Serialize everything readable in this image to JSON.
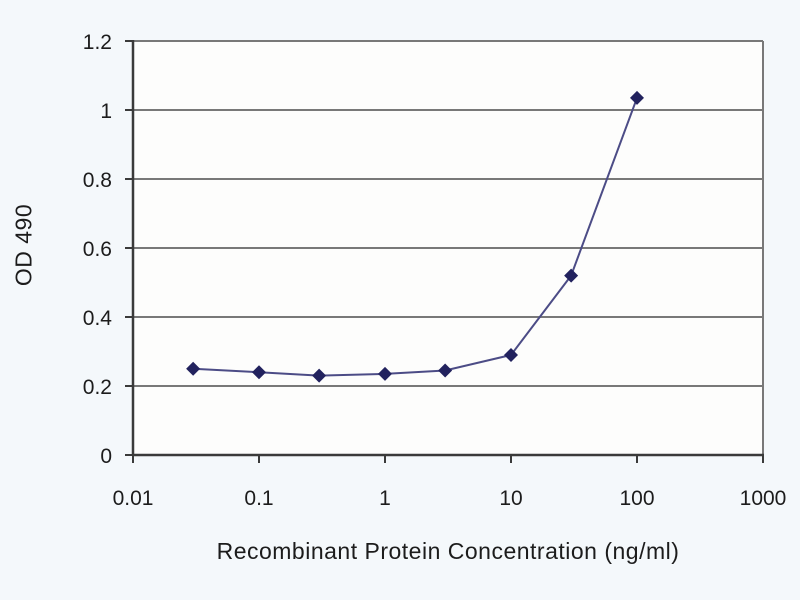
{
  "style": {
    "page_bg": "#f4f8fb",
    "plot_bg": "#fdfdfc",
    "grid_color": "#787878",
    "frame_color": "#787878",
    "axis_color": "#3a3a3a",
    "line_color": "#4c4c86",
    "marker_color": "#22225e",
    "text_color": "#1c1c1c"
  },
  "chart_data": {
    "type": "line",
    "title": "",
    "xlabel": "Recombinant Protein Concentration (ng/ml)",
    "ylabel": "OD 490",
    "x_scale": "log",
    "xlim": [
      0.01,
      1000
    ],
    "ylim": [
      0,
      1.2
    ],
    "x_ticks": [
      0.01,
      0.1,
      1,
      10,
      100,
      1000
    ],
    "x_tick_labels": [
      "0.01",
      "0.1",
      "1",
      "10",
      "100",
      "1000"
    ],
    "y_ticks": [
      0,
      0.2,
      0.4,
      0.6,
      0.8,
      1,
      1.2
    ],
    "y_tick_labels": [
      "0",
      "0.2",
      "0.4",
      "0.6",
      "0.8",
      "1",
      "1.2"
    ],
    "grid": "horizontal",
    "legend_position": "none",
    "series": [
      {
        "name": "OD 490",
        "marker": "diamond",
        "x": [
          0.03,
          0.1,
          0.3,
          1,
          3,
          10,
          30,
          100
        ],
        "y": [
          0.25,
          0.24,
          0.23,
          0.235,
          0.245,
          0.29,
          0.52,
          1.035
        ]
      }
    ]
  }
}
